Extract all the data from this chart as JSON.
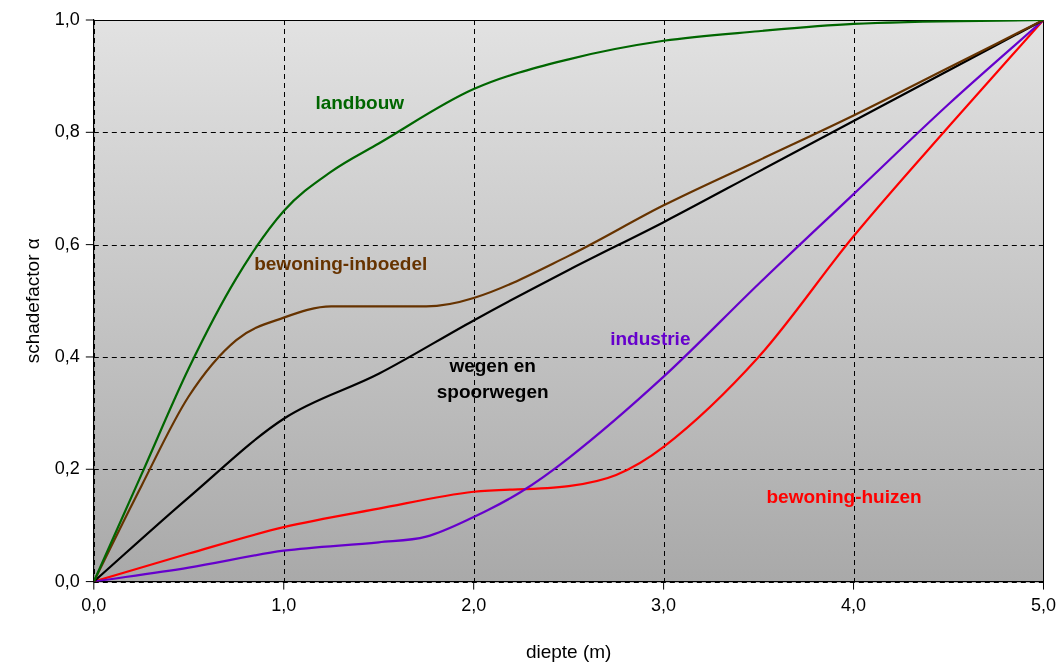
{
  "chart_data": {
    "type": "line",
    "xlabel": "diepte (m)",
    "ylabel": "schadefactor α",
    "xlim": [
      0,
      5
    ],
    "ylim": [
      0,
      1
    ],
    "xticks": [
      {
        "value": 0,
        "label": "0,0"
      },
      {
        "value": 1,
        "label": "1,0"
      },
      {
        "value": 2,
        "label": "2,0"
      },
      {
        "value": 3,
        "label": "3,0"
      },
      {
        "value": 4,
        "label": "4,0"
      },
      {
        "value": 5,
        "label": "5,0"
      }
    ],
    "yticks": [
      {
        "value": 0,
        "label": "0,0"
      },
      {
        "value": 0.2,
        "label": "0,2"
      },
      {
        "value": 0.4,
        "label": "0,4"
      },
      {
        "value": 0.6,
        "label": "0,6"
      },
      {
        "value": 0.8,
        "label": "0,8"
      },
      {
        "value": 1,
        "label": "1,0"
      }
    ],
    "grid": true,
    "legend": false,
    "marker": "none",
    "line_style": "solid",
    "series": [
      {
        "name": "landbouw",
        "color": "#006600",
        "x": [
          0,
          0.25,
          0.5,
          0.75,
          1,
          1.25,
          1.5,
          2,
          2.5,
          3,
          3.5,
          4,
          5
        ],
        "values": [
          0,
          0.19,
          0.38,
          0.54,
          0.66,
          0.73,
          0.78,
          0.877,
          0.93,
          0.963,
          0.98,
          0.993,
          1
        ]
      },
      {
        "name": "bewoning-inboedel",
        "color": "#663300",
        "x": [
          0,
          0.25,
          0.5,
          0.75,
          1,
          1.25,
          1.5,
          1.75,
          2,
          2.5,
          3,
          3.5,
          4,
          4.5,
          5
        ],
        "values": [
          0,
          0.17,
          0.33,
          0.43,
          0.47,
          0.49,
          0.49,
          0.49,
          0.505,
          0.58,
          0.67,
          0.75,
          0.83,
          0.915,
          1
        ]
      },
      {
        "name": "wegen en spoorwegen",
        "color": "#000000",
        "x": [
          0,
          0.5,
          1,
          1.5,
          2,
          2.5,
          3,
          3.5,
          4,
          4.5,
          5
        ],
        "values": [
          0,
          0.15,
          0.29,
          0.37,
          0.465,
          0.555,
          0.64,
          0.73,
          0.82,
          0.91,
          1
        ]
      },
      {
        "name": "industrie",
        "color": "#6600cc",
        "x": [
          0,
          0.5,
          1,
          1.5,
          1.75,
          2,
          2.25,
          2.5,
          3,
          3.5,
          4,
          4.5,
          5
        ],
        "values": [
          0,
          0.025,
          0.055,
          0.07,
          0.08,
          0.115,
          0.16,
          0.22,
          0.365,
          0.53,
          0.69,
          0.85,
          1
        ]
      },
      {
        "name": "bewoning-huizen",
        "color": "#ff0000",
        "x": [
          0,
          0.5,
          1,
          1.5,
          2,
          2.5,
          2.75,
          3,
          3.5,
          4,
          4.5,
          5
        ],
        "values": [
          0,
          0.05,
          0.097,
          0.13,
          0.16,
          0.17,
          0.19,
          0.24,
          0.4,
          0.615,
          0.81,
          1
        ]
      }
    ]
  }
}
